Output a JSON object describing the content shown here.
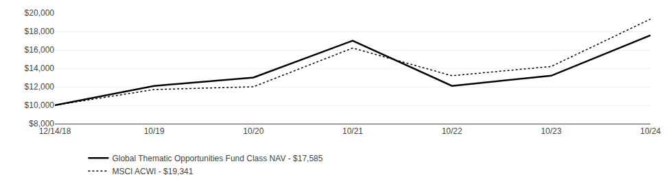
{
  "chart_data": {
    "type": "line",
    "categories": [
      "12/14/18",
      "10/19",
      "10/20",
      "10/21",
      "10/22",
      "10/23",
      "10/24"
    ],
    "series": [
      {
        "name": "Global Thematic Opportunities Fund Class NAV - $17,585",
        "color": "#000000",
        "line_style": "solid",
        "values": [
          10000,
          12100,
          13000,
          17000,
          12100,
          13200,
          17585
        ]
      },
      {
        "name": "MSCI ACWI - $19,341",
        "color": "#000000",
        "line_style": "dotted",
        "values": [
          10000,
          11700,
          12000,
          16200,
          13200,
          14200,
          19341
        ]
      }
    ],
    "ylim": [
      8000,
      20000
    ],
    "yticks": [
      {
        "value": 8000,
        "label": "$8,000"
      },
      {
        "value": 10000,
        "label": "$10,000"
      },
      {
        "value": 12000,
        "label": "$12,000"
      },
      {
        "value": 14000,
        "label": "$14,000"
      },
      {
        "value": 16000,
        "label": "$16,000"
      },
      {
        "value": 18000,
        "label": "$18,000"
      },
      {
        "value": 20000,
        "label": "$20,000"
      }
    ],
    "grid": true,
    "legend": "bottom"
  }
}
